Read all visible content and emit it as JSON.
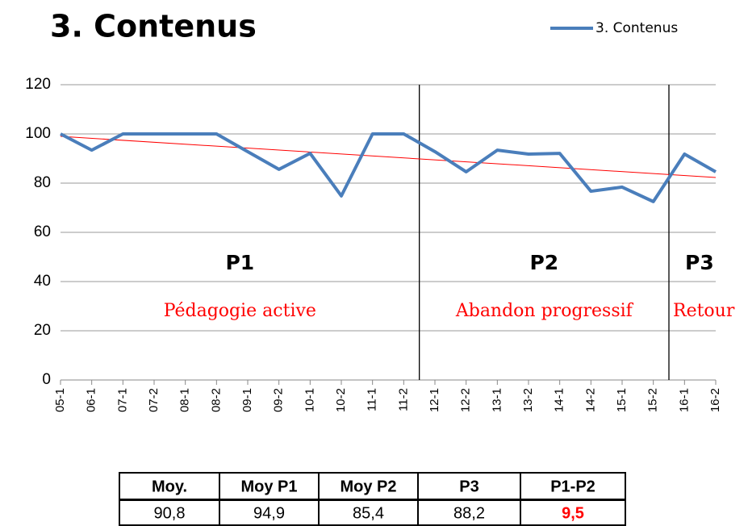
{
  "chart_data": {
    "type": "line",
    "title": "3. Contenus",
    "categories": [
      "05-1",
      "06-1",
      "07-1",
      "07-2",
      "08-1",
      "08-2",
      "09-1",
      "09-2",
      "10-1",
      "10-2",
      "11-1",
      "11-2",
      "12-1",
      "12-2",
      "13-1",
      "13-2",
      "14-1",
      "14-2",
      "15-1",
      "15-2",
      "16-1",
      "16-2"
    ],
    "series": [
      {
        "name": "3. Contenus",
        "color": "#4a7ebb",
        "values": [
          100,
          93.4,
          100,
          100,
          100,
          100,
          92.8,
          85.6,
          92.1,
          74.8,
          100,
          100,
          92.8,
          84.6,
          93.4,
          91.8,
          92.1,
          76.7,
          78.4,
          72.5,
          91.8,
          84.6
        ]
      }
    ],
    "trendline": {
      "color": "#ff0000",
      "start": 99,
      "end": 82.3
    },
    "ylim": [
      0,
      120
    ],
    "yticks": [
      0,
      20,
      40,
      60,
      80,
      100,
      120
    ],
    "grid": true,
    "legend": "top-right",
    "periods": [
      {
        "label": "P1",
        "subtitle": "Pédagogie active",
        "start": 0,
        "end": 11
      },
      {
        "label": "P2",
        "subtitle": "Abandon progressif",
        "start": 12,
        "end": 19
      },
      {
        "label": "P3",
        "subtitle": "Retour",
        "start": 20,
        "end": 21
      }
    ]
  },
  "table": {
    "header": [
      "Moy.",
      "Moy P1",
      "Moy P2",
      "P3",
      "P1-P2"
    ],
    "rows": [
      [
        "90,8",
        "94,9",
        "85,4",
        "88,2",
        "9,5"
      ]
    ]
  }
}
